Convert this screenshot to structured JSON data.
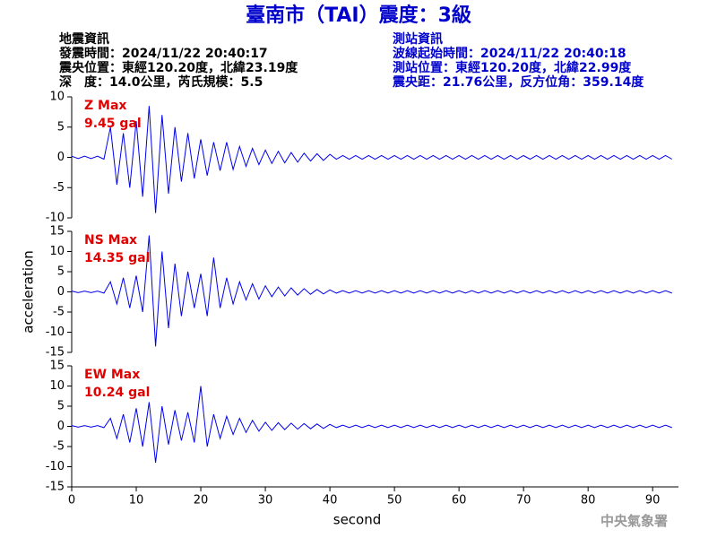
{
  "header": {
    "title": "臺南市（TAI）震度：3級",
    "left": [
      "地震資訊",
      "發震時間：2024/11/22 20:40:17",
      "震央位置：東經120.20度，北緯23.19度",
      "深　度：14.0公里，芮氏規模：5.5"
    ],
    "right": [
      "測站資訊",
      "波線起始時間：2024/11/22 20:40:18",
      "測站位置：東經120.20度，北緯22.99度",
      "震央距：21.76公里，反方位角：359.14度"
    ],
    "watermark": "中央氣象署"
  },
  "chart_data": [
    {
      "type": "line",
      "name": "Z Max",
      "annotation": "9.45 gal",
      "color": "#0000ee",
      "xlim": [
        0,
        94
      ],
      "ylim": [
        -10,
        10
      ],
      "yticks": [
        -10,
        -5,
        0,
        5,
        10
      ],
      "x": [
        0,
        1,
        2,
        3,
        4,
        5,
        6,
        7,
        8,
        9,
        10,
        11,
        12,
        13,
        14,
        15,
        16,
        17,
        18,
        19,
        20,
        21,
        22,
        23,
        24,
        25,
        26,
        27,
        28,
        29,
        30,
        31,
        32,
        33,
        34,
        35,
        36,
        37,
        38,
        39,
        40,
        41,
        42,
        43,
        44,
        45,
        46,
        47,
        48,
        49,
        50,
        51,
        52,
        53,
        54,
        55,
        56,
        57,
        58,
        59,
        60,
        61,
        62,
        63,
        64,
        65,
        66,
        67,
        68,
        69,
        70,
        71,
        72,
        73,
        74,
        75,
        76,
        77,
        78,
        79,
        80,
        81,
        82,
        83,
        84,
        85,
        86,
        87,
        88,
        89,
        90,
        91,
        92,
        93
      ],
      "values": [
        0.2,
        -0.2,
        0.2,
        -0.2,
        0.2,
        -0.3,
        5,
        -4.5,
        4,
        -5,
        6,
        -6.5,
        8.5,
        -9.2,
        7,
        -6,
        5,
        -4,
        4,
        -3.5,
        3,
        -3,
        2.5,
        -2.2,
        2.5,
        -2,
        1.8,
        -1.5,
        1.5,
        -1.2,
        1.2,
        -1,
        1,
        -0.9,
        0.8,
        -0.8,
        0.7,
        -0.6,
        0.6,
        -0.5,
        0.5,
        -0.3,
        0.3,
        -0.3,
        0.3,
        -0.3,
        0.3,
        -0.3,
        0.3,
        -0.3,
        0.3,
        -0.3,
        0.3,
        -0.3,
        0.3,
        -0.3,
        0.3,
        -0.3,
        0.3,
        -0.3,
        0.3,
        -0.3,
        0.3,
        -0.3,
        0.3,
        -0.3,
        0.3,
        -0.3,
        0.3,
        -0.3,
        0.3,
        -0.3,
        0.3,
        -0.3,
        0.3,
        -0.3,
        0.3,
        -0.3,
        0.3,
        -0.3,
        0.3,
        -0.3,
        0.3,
        -0.3,
        0.3,
        -0.3,
        0.3,
        -0.3,
        0.3,
        -0.3,
        0.3,
        -0.3,
        0.3,
        -0.3
      ]
    },
    {
      "type": "line",
      "name": "NS Max",
      "annotation": "14.35 gal",
      "color": "#0000ee",
      "ylabel": "acceleration",
      "xlim": [
        0,
        94
      ],
      "ylim": [
        -15,
        15
      ],
      "yticks": [
        -15,
        -10,
        -5,
        0,
        5,
        10,
        15
      ],
      "x": [
        0,
        1,
        2,
        3,
        4,
        5,
        6,
        7,
        8,
        9,
        10,
        11,
        12,
        13,
        14,
        15,
        16,
        17,
        18,
        19,
        20,
        21,
        22,
        23,
        24,
        25,
        26,
        27,
        28,
        29,
        30,
        31,
        32,
        33,
        34,
        35,
        36,
        37,
        38,
        39,
        40,
        41,
        42,
        43,
        44,
        45,
        46,
        47,
        48,
        49,
        50,
        51,
        52,
        53,
        54,
        55,
        56,
        57,
        58,
        59,
        60,
        61,
        62,
        63,
        64,
        65,
        66,
        67,
        68,
        69,
        70,
        71,
        72,
        73,
        74,
        75,
        76,
        77,
        78,
        79,
        80,
        81,
        82,
        83,
        84,
        85,
        86,
        87,
        88,
        89,
        90,
        91,
        92,
        93
      ],
      "values": [
        0.2,
        -0.2,
        0.2,
        -0.2,
        0.2,
        -0.3,
        2.5,
        -3,
        3.5,
        -4,
        4,
        -5,
        14,
        -13.5,
        10,
        -9,
        7,
        -6,
        5,
        -4,
        4.5,
        -6,
        8.5,
        -4,
        3.5,
        -3,
        2.5,
        -2,
        2,
        -1.8,
        1.5,
        -1.2,
        1.2,
        -1,
        1,
        -0.8,
        0.8,
        -0.6,
        0.6,
        -0.5,
        0.5,
        -0.3,
        0.3,
        -0.3,
        0.3,
        -0.3,
        0.3,
        -0.3,
        0.3,
        -0.3,
        0.3,
        -0.3,
        0.3,
        -0.3,
        0.3,
        -0.3,
        0.3,
        -0.3,
        0.3,
        -0.3,
        0.3,
        -0.3,
        0.3,
        -0.3,
        0.3,
        -0.3,
        0.3,
        -0.3,
        0.3,
        -0.3,
        0.3,
        -0.3,
        0.3,
        -0.3,
        0.3,
        -0.3,
        0.3,
        -0.3,
        0.3,
        -0.3,
        0.3,
        -0.3,
        0.3,
        -0.3,
        0.3,
        -0.3,
        0.3,
        -0.3,
        0.3,
        -0.3,
        0.3,
        -0.3,
        0.3,
        -0.3
      ]
    },
    {
      "type": "line",
      "name": "EW Max",
      "annotation": "10.24 gal",
      "color": "#0000ee",
      "xlabel": "second",
      "xlim": [
        0,
        94
      ],
      "xticks": [
        0,
        10,
        20,
        30,
        40,
        50,
        60,
        70,
        80,
        90
      ],
      "ylim": [
        -15,
        15
      ],
      "yticks": [
        -15,
        -10,
        -5,
        0,
        5,
        10,
        15
      ],
      "x": [
        0,
        1,
        2,
        3,
        4,
        5,
        6,
        7,
        8,
        9,
        10,
        11,
        12,
        13,
        14,
        15,
        16,
        17,
        18,
        19,
        20,
        21,
        22,
        23,
        24,
        25,
        26,
        27,
        28,
        29,
        30,
        31,
        32,
        33,
        34,
        35,
        36,
        37,
        38,
        39,
        40,
        41,
        42,
        43,
        44,
        45,
        46,
        47,
        48,
        49,
        50,
        51,
        52,
        53,
        54,
        55,
        56,
        57,
        58,
        59,
        60,
        61,
        62,
        63,
        64,
        65,
        66,
        67,
        68,
        69,
        70,
        71,
        72,
        73,
        74,
        75,
        76,
        77,
        78,
        79,
        80,
        81,
        82,
        83,
        84,
        85,
        86,
        87,
        88,
        89,
        90,
        91,
        92,
        93
      ],
      "values": [
        0.2,
        -0.2,
        0.2,
        -0.2,
        0.2,
        -0.3,
        2,
        -3,
        3,
        -4,
        4.5,
        -5,
        6,
        -9,
        5,
        -4.5,
        4,
        -3.5,
        3.5,
        -4,
        10,
        -5,
        3,
        -3,
        2.5,
        -2,
        2,
        -1.5,
        1.5,
        -1.2,
        1,
        -1,
        0.9,
        -0.8,
        0.8,
        -0.7,
        0.7,
        -0.6,
        0.6,
        -0.5,
        0.5,
        -0.3,
        0.3,
        -0.3,
        0.3,
        -0.3,
        0.3,
        -0.3,
        0.3,
        -0.3,
        0.3,
        -0.3,
        0.3,
        -0.3,
        0.3,
        -0.3,
        0.3,
        -0.3,
        0.3,
        -0.3,
        0.3,
        -0.3,
        0.3,
        -0.3,
        0.3,
        -0.3,
        0.3,
        -0.3,
        0.3,
        -0.3,
        0.3,
        -0.3,
        0.3,
        -0.3,
        0.3,
        -0.3,
        0.3,
        -0.3,
        0.3,
        -0.3,
        0.3,
        -0.3,
        0.3,
        -0.3,
        0.3,
        -0.3,
        0.3,
        -0.3,
        0.3,
        -0.3,
        0.3,
        -0.3,
        0.3,
        -0.3
      ]
    }
  ]
}
